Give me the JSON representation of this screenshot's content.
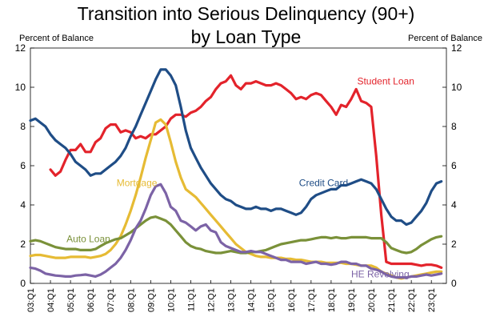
{
  "chart_data": {
    "type": "line",
    "title_lines": [
      "Transition into Serious Delinquency (90+)",
      "by Loan Type"
    ],
    "ylabel_left": "Percent of Balance",
    "ylabel_right": "Percent of Balance",
    "ylim": [
      0,
      12
    ],
    "yticks": [
      "0",
      "2",
      "4",
      "6",
      "8",
      "10",
      "12"
    ],
    "xlim": [
      2003.0,
      2023.75
    ],
    "xticks": [
      "03:Q1",
      "04:Q1",
      "05:Q1",
      "06:Q1",
      "07:Q1",
      "08:Q1",
      "09:Q1",
      "10:Q1",
      "11:Q1",
      "12:Q1",
      "13:Q1",
      "14:Q1",
      "15:Q1",
      "16:Q1",
      "17:Q1",
      "18:Q1",
      "19:Q1",
      "20:Q1",
      "21:Q1",
      "22:Q1",
      "23:Q1"
    ],
    "grid": false,
    "series": [
      {
        "name": "Student Loan",
        "color": "#e3232b",
        "x": [
          2004.0,
          2004.25,
          2004.5,
          2004.75,
          2005.0,
          2005.25,
          2005.5,
          2005.75,
          2006.0,
          2006.25,
          2006.5,
          2006.75,
          2007.0,
          2007.25,
          2007.5,
          2007.75,
          2008.0,
          2008.25,
          2008.5,
          2008.75,
          2009.0,
          2009.25,
          2009.5,
          2009.75,
          2010.0,
          2010.25,
          2010.5,
          2010.75,
          2011.0,
          2011.25,
          2011.5,
          2011.75,
          2012.0,
          2012.25,
          2012.5,
          2012.75,
          2013.0,
          2013.25,
          2013.5,
          2013.75,
          2014.0,
          2014.25,
          2014.5,
          2014.75,
          2015.0,
          2015.25,
          2015.5,
          2015.75,
          2016.0,
          2016.25,
          2016.5,
          2016.75,
          2017.0,
          2017.25,
          2017.5,
          2017.75,
          2018.0,
          2018.25,
          2018.5,
          2018.75,
          2019.0,
          2019.25,
          2019.5,
          2019.75,
          2020.0,
          2020.25,
          2020.5,
          2020.75,
          2021.0,
          2021.25,
          2021.5,
          2021.75,
          2022.0,
          2022.25,
          2022.5,
          2022.75,
          2023.0,
          2023.25,
          2023.5
        ],
        "values": [
          5.8,
          5.5,
          5.7,
          6.3,
          6.8,
          6.8,
          7.1,
          6.7,
          6.7,
          7.2,
          7.4,
          7.9,
          8.1,
          8.1,
          7.7,
          7.8,
          7.7,
          7.4,
          7.5,
          7.4,
          7.6,
          7.6,
          7.8,
          8.0,
          8.4,
          8.6,
          8.6,
          8.5,
          8.7,
          8.8,
          9.0,
          9.3,
          9.5,
          9.9,
          10.2,
          10.3,
          10.6,
          10.1,
          9.9,
          10.2,
          10.2,
          10.3,
          10.2,
          10.1,
          10.1,
          10.2,
          10.1,
          9.9,
          9.7,
          9.4,
          9.5,
          9.4,
          9.6,
          9.7,
          9.6,
          9.3,
          9.0,
          8.6,
          9.1,
          9.0,
          9.4,
          9.9,
          9.3,
          9.2,
          9.0,
          6.5,
          3.5,
          1.1,
          1.0,
          1.0,
          1.0,
          1.0,
          1.0,
          0.95,
          0.9,
          0.95,
          0.95,
          0.9,
          0.8
        ]
      },
      {
        "name": "Credit Card",
        "color": "#1f4d86",
        "x": [
          2003.0,
          2003.25,
          2003.5,
          2003.75,
          2004.0,
          2004.25,
          2004.5,
          2004.75,
          2005.0,
          2005.25,
          2005.5,
          2005.75,
          2006.0,
          2006.25,
          2006.5,
          2006.75,
          2007.0,
          2007.25,
          2007.5,
          2007.75,
          2008.0,
          2008.25,
          2008.5,
          2008.75,
          2009.0,
          2009.25,
          2009.5,
          2009.75,
          2010.0,
          2010.25,
          2010.5,
          2010.75,
          2011.0,
          2011.25,
          2011.5,
          2011.75,
          2012.0,
          2012.25,
          2012.5,
          2012.75,
          2013.0,
          2013.25,
          2013.5,
          2013.75,
          2014.0,
          2014.25,
          2014.5,
          2014.75,
          2015.0,
          2015.25,
          2015.5,
          2015.75,
          2016.0,
          2016.25,
          2016.5,
          2016.75,
          2017.0,
          2017.25,
          2017.5,
          2017.75,
          2018.0,
          2018.25,
          2018.5,
          2018.75,
          2019.0,
          2019.25,
          2019.5,
          2019.75,
          2020.0,
          2020.25,
          2020.5,
          2020.75,
          2021.0,
          2021.25,
          2021.5,
          2021.75,
          2022.0,
          2022.25,
          2022.5,
          2022.75,
          2023.0,
          2023.25,
          2023.5
        ],
        "values": [
          8.3,
          8.4,
          8.2,
          8.0,
          7.6,
          7.3,
          7.1,
          6.9,
          6.6,
          6.2,
          6.0,
          5.8,
          5.5,
          5.6,
          5.6,
          5.8,
          6.0,
          6.2,
          6.5,
          6.9,
          7.5,
          8.0,
          8.6,
          9.2,
          9.8,
          10.4,
          10.9,
          10.9,
          10.6,
          10.1,
          9.0,
          7.8,
          6.9,
          6.4,
          5.9,
          5.5,
          5.1,
          4.8,
          4.5,
          4.3,
          4.2,
          4.0,
          3.9,
          3.8,
          3.8,
          3.9,
          3.8,
          3.8,
          3.7,
          3.8,
          3.8,
          3.7,
          3.6,
          3.5,
          3.6,
          3.9,
          4.3,
          4.5,
          4.6,
          4.7,
          4.8,
          4.8,
          5.0,
          5.0,
          5.1,
          5.2,
          5.3,
          5.2,
          5.1,
          4.8,
          4.3,
          3.8,
          3.4,
          3.2,
          3.2,
          3.0,
          3.1,
          3.4,
          3.7,
          4.1,
          4.7,
          5.1,
          5.2
        ]
      },
      {
        "name": "Mortgage",
        "color": "#e6bb34",
        "x": [
          2003.0,
          2003.25,
          2003.5,
          2003.75,
          2004.0,
          2004.25,
          2004.5,
          2004.75,
          2005.0,
          2005.25,
          2005.5,
          2005.75,
          2006.0,
          2006.25,
          2006.5,
          2006.75,
          2007.0,
          2007.25,
          2007.5,
          2007.75,
          2008.0,
          2008.25,
          2008.5,
          2008.75,
          2009.0,
          2009.25,
          2009.5,
          2009.75,
          2010.0,
          2010.25,
          2010.5,
          2010.75,
          2011.0,
          2011.25,
          2011.5,
          2011.75,
          2012.0,
          2012.25,
          2012.5,
          2012.75,
          2013.0,
          2013.25,
          2013.5,
          2013.75,
          2014.0,
          2014.25,
          2014.5,
          2014.75,
          2015.0,
          2015.25,
          2015.5,
          2015.75,
          2016.0,
          2016.25,
          2016.5,
          2016.75,
          2017.0,
          2017.25,
          2017.5,
          2017.75,
          2018.0,
          2018.25,
          2018.5,
          2018.75,
          2019.0,
          2019.25,
          2019.5,
          2019.75,
          2020.0,
          2020.25,
          2020.5,
          2020.75,
          2021.0,
          2021.25,
          2021.5,
          2021.75,
          2022.0,
          2022.25,
          2022.5,
          2022.75,
          2023.0,
          2023.25,
          2023.5
        ],
        "values": [
          1.4,
          1.45,
          1.45,
          1.4,
          1.35,
          1.3,
          1.3,
          1.3,
          1.35,
          1.35,
          1.35,
          1.35,
          1.3,
          1.35,
          1.4,
          1.5,
          1.7,
          2.0,
          2.4,
          3.0,
          3.7,
          4.5,
          5.4,
          6.4,
          7.3,
          8.2,
          8.35,
          8.1,
          7.2,
          6.2,
          5.4,
          4.8,
          4.6,
          4.4,
          4.1,
          3.8,
          3.5,
          3.2,
          2.9,
          2.6,
          2.3,
          2.0,
          1.8,
          1.6,
          1.5,
          1.4,
          1.35,
          1.35,
          1.3,
          1.3,
          1.3,
          1.25,
          1.25,
          1.2,
          1.2,
          1.15,
          1.1,
          1.1,
          1.1,
          1.05,
          1.05,
          1.05,
          1.05,
          1.0,
          1.0,
          0.95,
          0.9,
          0.9,
          0.9,
          0.8,
          0.6,
          0.5,
          0.4,
          0.3,
          0.25,
          0.3,
          0.35,
          0.4,
          0.45,
          0.5,
          0.55,
          0.6,
          0.6
        ]
      },
      {
        "name": "Auto Loan",
        "color": "#7a9139",
        "x": [
          2003.0,
          2003.25,
          2003.5,
          2003.75,
          2004.0,
          2004.25,
          2004.5,
          2004.75,
          2005.0,
          2005.25,
          2005.5,
          2005.75,
          2006.0,
          2006.25,
          2006.5,
          2006.75,
          2007.0,
          2007.25,
          2007.5,
          2007.75,
          2008.0,
          2008.25,
          2008.5,
          2008.75,
          2009.0,
          2009.25,
          2009.5,
          2009.75,
          2010.0,
          2010.25,
          2010.5,
          2010.75,
          2011.0,
          2011.25,
          2011.5,
          2011.75,
          2012.0,
          2012.25,
          2012.5,
          2012.75,
          2013.0,
          2013.25,
          2013.5,
          2013.75,
          2014.0,
          2014.25,
          2014.5,
          2014.75,
          2015.0,
          2015.25,
          2015.5,
          2015.75,
          2016.0,
          2016.25,
          2016.5,
          2016.75,
          2017.0,
          2017.25,
          2017.5,
          2017.75,
          2018.0,
          2018.25,
          2018.5,
          2018.75,
          2019.0,
          2019.25,
          2019.5,
          2019.75,
          2020.0,
          2020.25,
          2020.5,
          2020.75,
          2021.0,
          2021.25,
          2021.5,
          2021.75,
          2022.0,
          2022.25,
          2022.5,
          2022.75,
          2023.0,
          2023.25,
          2023.5
        ],
        "values": [
          2.15,
          2.2,
          2.15,
          2.05,
          1.95,
          1.85,
          1.8,
          1.75,
          1.75,
          1.75,
          1.7,
          1.7,
          1.7,
          1.75,
          1.9,
          2.05,
          2.15,
          2.25,
          2.3,
          2.45,
          2.6,
          2.8,
          3.0,
          3.2,
          3.35,
          3.4,
          3.3,
          3.2,
          3.0,
          2.7,
          2.4,
          2.1,
          1.9,
          1.8,
          1.75,
          1.65,
          1.6,
          1.55,
          1.55,
          1.6,
          1.65,
          1.6,
          1.55,
          1.55,
          1.6,
          1.6,
          1.65,
          1.7,
          1.8,
          1.9,
          2.0,
          2.05,
          2.1,
          2.15,
          2.2,
          2.2,
          2.25,
          2.3,
          2.35,
          2.35,
          2.3,
          2.35,
          2.3,
          2.3,
          2.35,
          2.35,
          2.35,
          2.35,
          2.3,
          2.3,
          2.3,
          2.1,
          1.8,
          1.7,
          1.6,
          1.55,
          1.6,
          1.75,
          1.95,
          2.1,
          2.25,
          2.35,
          2.4
        ]
      },
      {
        "name": "HE Revolving",
        "color": "#7c63a6",
        "x": [
          2003.0,
          2003.25,
          2003.5,
          2003.75,
          2004.0,
          2004.25,
          2004.5,
          2004.75,
          2005.0,
          2005.25,
          2005.5,
          2005.75,
          2006.0,
          2006.25,
          2006.5,
          2006.75,
          2007.0,
          2007.25,
          2007.5,
          2007.75,
          2008.0,
          2008.25,
          2008.5,
          2008.75,
          2009.0,
          2009.25,
          2009.5,
          2009.75,
          2010.0,
          2010.25,
          2010.5,
          2010.75,
          2011.0,
          2011.25,
          2011.5,
          2011.75,
          2012.0,
          2012.25,
          2012.5,
          2012.75,
          2013.0,
          2013.25,
          2013.5,
          2013.75,
          2014.0,
          2014.25,
          2014.5,
          2014.75,
          2015.0,
          2015.25,
          2015.5,
          2015.75,
          2016.0,
          2016.25,
          2016.5,
          2016.75,
          2017.0,
          2017.25,
          2017.5,
          2017.75,
          2018.0,
          2018.25,
          2018.5,
          2018.75,
          2019.0,
          2019.25,
          2019.5,
          2019.75,
          2020.0,
          2020.25,
          2020.5,
          2020.75,
          2021.0,
          2021.25,
          2021.5,
          2021.75,
          2022.0,
          2022.25,
          2022.5,
          2022.75,
          2023.0,
          2023.25,
          2023.5
        ],
        "values": [
          0.8,
          0.75,
          0.65,
          0.5,
          0.45,
          0.4,
          0.38,
          0.35,
          0.35,
          0.4,
          0.42,
          0.45,
          0.4,
          0.35,
          0.45,
          0.6,
          0.8,
          1.0,
          1.3,
          1.7,
          2.2,
          2.8,
          3.2,
          3.8,
          4.5,
          4.95,
          5.05,
          4.6,
          3.9,
          3.7,
          3.2,
          3.1,
          2.9,
          2.7,
          2.9,
          3.0,
          2.7,
          2.6,
          2.1,
          1.9,
          1.8,
          1.7,
          1.6,
          1.6,
          1.65,
          1.6,
          1.6,
          1.5,
          1.4,
          1.3,
          1.2,
          1.2,
          1.1,
          1.1,
          1.1,
          1.0,
          1.05,
          1.1,
          1.0,
          1.0,
          0.95,
          1.0,
          1.1,
          1.1,
          1.0,
          1.0,
          0.9,
          0.9,
          0.75,
          0.7,
          0.6,
          0.45,
          0.35,
          0.3,
          0.3,
          0.3,
          0.35,
          0.35,
          0.4,
          0.45,
          0.4,
          0.45,
          0.5
        ]
      }
    ],
    "annotations": [
      {
        "text": "Student Loan",
        "series": "Student Loan",
        "x": 2019.3,
        "y": 10.15
      },
      {
        "text": "Credit Card",
        "series": "Credit Card",
        "x": 2016.4,
        "y": 4.95
      },
      {
        "text": "Mortgage",
        "series": "Mortgage",
        "x": 2007.3,
        "y": 4.95
      },
      {
        "text": "Auto Loan",
        "series": "Auto Loan",
        "x": 2004.8,
        "y": 2.1
      },
      {
        "text": "HE Revolving",
        "series": "HE Revolving",
        "x": 2019.0,
        "y": 0.3
      }
    ]
  }
}
